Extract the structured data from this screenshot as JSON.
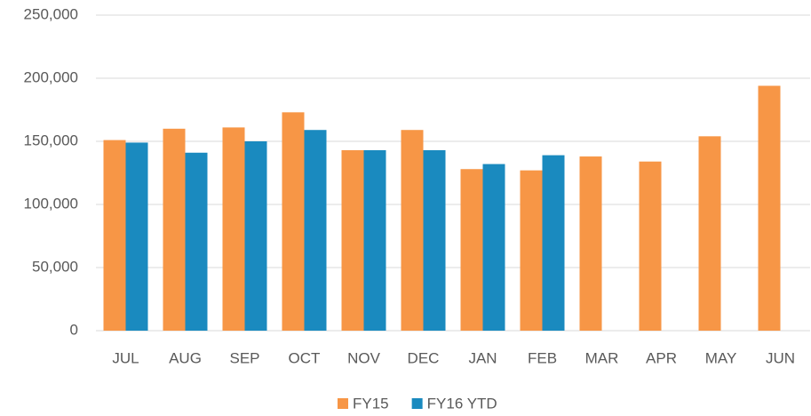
{
  "chart_data": {
    "type": "bar",
    "categories": [
      "JUL",
      "AUG",
      "SEP",
      "OCT",
      "NOV",
      "DEC",
      "JAN",
      "FEB",
      "MAR",
      "APR",
      "MAY",
      "JUN"
    ],
    "series": [
      {
        "name": "FY15",
        "color": "#f79646",
        "values": [
          151000,
          160000,
          161000,
          173000,
          143000,
          159000,
          128000,
          127000,
          138000,
          134000,
          154000,
          194000
        ]
      },
      {
        "name": "FY16 YTD",
        "color": "#1a8abf",
        "values": [
          149000,
          141000,
          150000,
          159000,
          143000,
          143000,
          132000,
          139000,
          null,
          null,
          null,
          null
        ]
      }
    ],
    "ylim": [
      0,
      250000
    ],
    "yticks": [
      0,
      {
        "value": 50000,
        "label": "50,000"
      },
      {
        "value": 100000,
        "label": "100,000"
      },
      {
        "value": 150000,
        "label": "150,000"
      },
      {
        "value": 200000,
        "label": "200,000"
      },
      {
        "value": 250000,
        "label": "250,000"
      }
    ],
    "grid": true,
    "legend": "bottom"
  }
}
